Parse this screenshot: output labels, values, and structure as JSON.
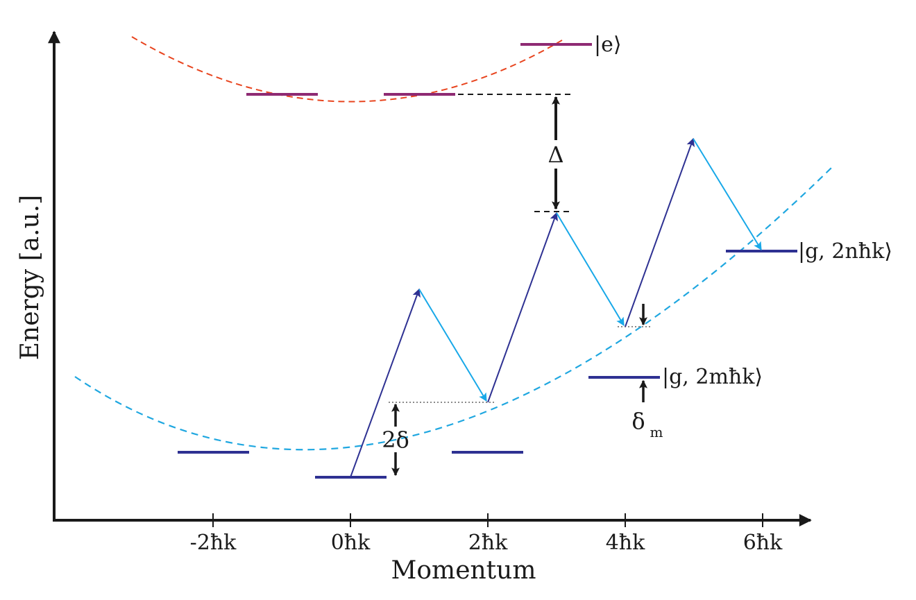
{
  "axes": {
    "xlabel": "Momentum",
    "ylabel": "Energy [a.u.]",
    "xticks": [
      "-2ħk",
      "0ħk",
      "2ħk",
      "4ħk",
      "6ħk"
    ]
  },
  "labels": {
    "excited_state": "|e⟩",
    "ground_state_n": "|g, 2nħk⟩",
    "ground_state_m": "|g, 2mħk⟩",
    "detuning": "Δ",
    "two_delta": "2δ",
    "delta_m": "δ",
    "delta_m_sub": "m"
  },
  "colors": {
    "excited_parabola": "#e8441e",
    "ground_parabola": "#1fa7e0",
    "excited_level": "#8e2a73",
    "ground_level": "#2e3192",
    "absorption_arrow": "#2e3192",
    "emission_arrow": "#18a8e8",
    "axis": "#1a1a1a"
  }
}
